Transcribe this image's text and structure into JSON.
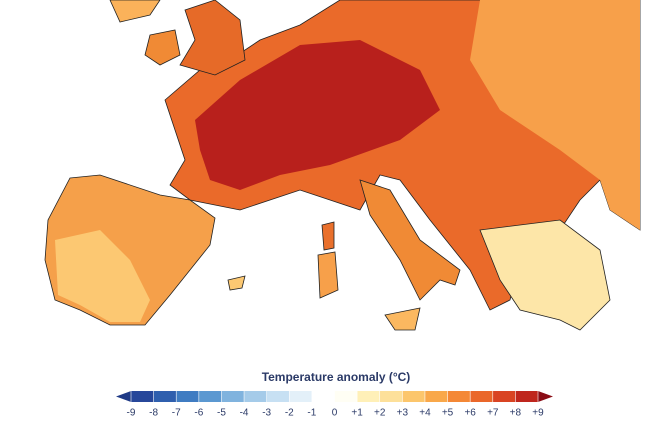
{
  "legend": {
    "title": "Temperature anomaly (°C)",
    "ticks": [
      -9,
      -8,
      -7,
      -6,
      -5,
      -4,
      -3,
      -2,
      -1,
      0,
      {
        "value": 1,
        "label": "+1"
      },
      {
        "value": 2,
        "label": "+2"
      },
      {
        "value": 3,
        "label": "+3"
      },
      {
        "value": 4,
        "label": "+4"
      },
      {
        "value": 5,
        "label": "+5"
      },
      {
        "value": 6,
        "label": "+6"
      },
      {
        "value": 7,
        "label": "+7"
      },
      {
        "value": 8,
        "label": "+8"
      },
      {
        "value": 9,
        "label": "+9"
      }
    ],
    "low_color": "#1f3a86",
    "high_color": "#8a0c15",
    "colors": [
      "#27479a",
      "#2f5fae",
      "#3f7cc2",
      "#5b98d1",
      "#80b3de",
      "#a5cbe9",
      "#c7e0f3",
      "#e3f0f9",
      "#ffffff",
      "#fffef4",
      "#fff0b8",
      "#fde09a",
      "#fcc66c",
      "#f9a84a",
      "#f48836",
      "#ea672a",
      "#d94423",
      "#bf261d"
    ]
  }
}
